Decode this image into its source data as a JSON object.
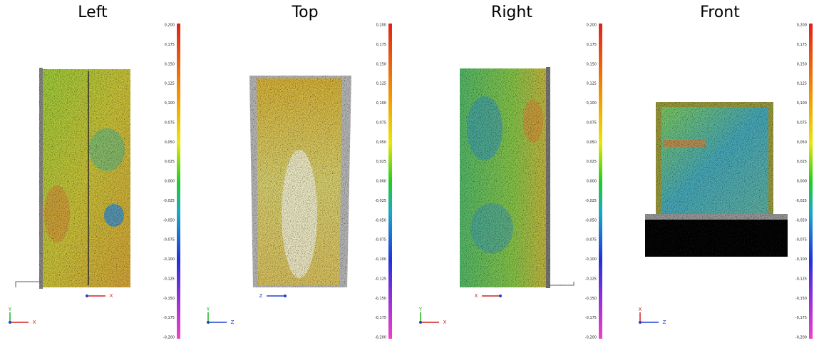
{
  "colorbar_ticks": [
    "0,200",
    "0,175",
    "0,150",
    "0,125",
    "0,100",
    "0,075",
    "0,050",
    "0,025",
    "0,000",
    "-0,025",
    "-0,050",
    "-0,075",
    "-0,100",
    "-0,125",
    "-0,150",
    "-0,175",
    "-0,200"
  ],
  "panels": [
    {
      "title": "Left",
      "triads": [
        [
          "Y",
          "X"
        ],
        [
          "X"
        ]
      ]
    },
    {
      "title": "Top",
      "triads": [
        [
          "Y",
          "Z"
        ],
        [
          "Z"
        ]
      ]
    },
    {
      "title": "Right",
      "triads": [
        [
          "Y",
          "X"
        ],
        [
          "X"
        ]
      ]
    },
    {
      "title": "Front",
      "triads": [
        [
          "X",
          "Z"
        ]
      ]
    }
  ]
}
